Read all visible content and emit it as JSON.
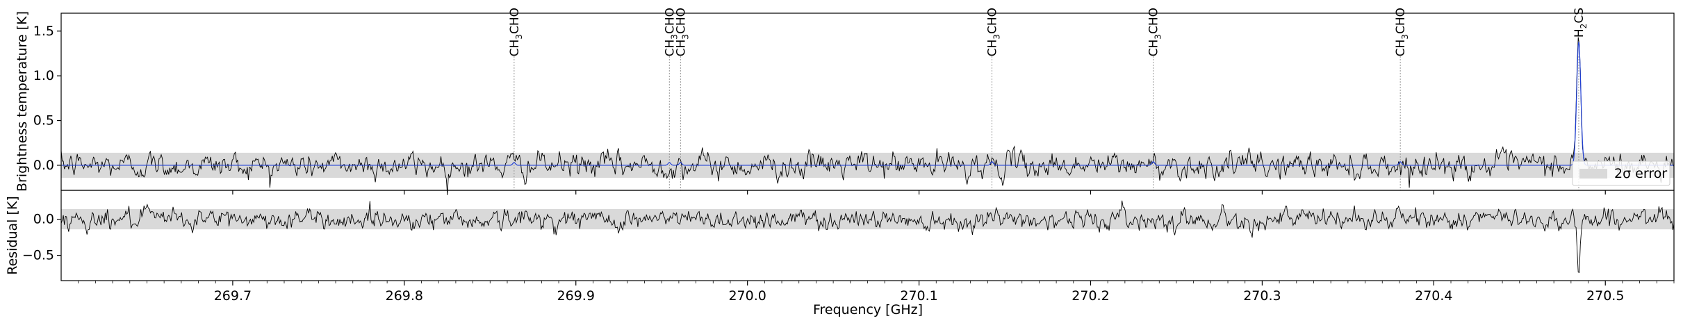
{
  "chart_data": {
    "type": "line",
    "xlabel": "Frequency [GHz]",
    "xlim": [
      269.6,
      270.54
    ],
    "xticks": [
      "269.7",
      "269.8",
      "269.9",
      "270.0",
      "270.1",
      "270.2",
      "270.3",
      "270.4",
      "270.5"
    ],
    "xtick_values": [
      269.7,
      269.8,
      269.9,
      270.0,
      270.1,
      270.2,
      270.3,
      270.4,
      270.5
    ],
    "colors": {
      "observed": "#000000",
      "model": "#1f3fd6",
      "error_band": "#d9d9d9",
      "marker": "#999999"
    },
    "panels": [
      {
        "name": "spectrum",
        "ylabel": "Brightness temperature [K]",
        "ylim": [
          -0.28,
          1.7
        ],
        "yticks": [
          "0.0",
          "0.5",
          "1.0",
          "1.5"
        ],
        "ytick_values": [
          0.0,
          0.5,
          1.0,
          1.5
        ],
        "error_band": [
          -0.14,
          0.14
        ],
        "legend": {
          "label": "2σ error",
          "location": "lower-right"
        },
        "series": [
          {
            "role": "observed",
            "style": "black thin noisy line",
            "noise_sigma": 0.07,
            "features": [
              {
                "x": 270.4845,
                "peak": 1.38,
                "width": 0.0012
              }
            ]
          },
          {
            "role": "model",
            "style": "blue line",
            "features": [
              {
                "x": 270.4845,
                "peak": 1.38,
                "width": 0.0012
              },
              {
                "x": 269.864,
                "peak": 0.03,
                "width": 0.0008
              },
              {
                "x": 269.9545,
                "peak": 0.03,
                "width": 0.0008
              },
              {
                "x": 269.961,
                "peak": 0.03,
                "width": 0.0008
              },
              {
                "x": 270.1425,
                "peak": 0.04,
                "width": 0.0008
              },
              {
                "x": 270.2365,
                "peak": 0.04,
                "width": 0.0008
              },
              {
                "x": 270.3805,
                "peak": 0.04,
                "width": 0.0008
              }
            ]
          }
        ],
        "line_markers": [
          {
            "x": 269.864,
            "label": "CH3CHO",
            "main": "CH",
            "sub": "3",
            "rest": "CHO"
          },
          {
            "x": 269.9545,
            "label": "CH3CHO",
            "main": "CH",
            "sub": "3",
            "rest": "CHO"
          },
          {
            "x": 269.961,
            "label": "CH3CHO",
            "main": "CH",
            "sub": "3",
            "rest": "CHO"
          },
          {
            "x": 270.1425,
            "label": "CH3CHO",
            "main": "CH",
            "sub": "3",
            "rest": "CHO"
          },
          {
            "x": 270.2365,
            "label": "CH3CHO",
            "main": "CH",
            "sub": "3",
            "rest": "CHO"
          },
          {
            "x": 270.3805,
            "label": "CH3CHO",
            "main": "CH",
            "sub": "3",
            "rest": "CHO"
          },
          {
            "x": 270.4845,
            "label": "H2CS",
            "main": "H",
            "sub": "2",
            "rest": "CS"
          }
        ]
      },
      {
        "name": "residual",
        "ylabel": "Residual [K]",
        "ylim": [
          -0.85,
          0.4
        ],
        "yticks": [
          "0.0",
          "−0.5"
        ],
        "ytick_values": [
          0.0,
          -0.5
        ],
        "error_band": [
          -0.14,
          0.14
        ],
        "series": [
          {
            "role": "residual",
            "style": "black thin noisy line",
            "noise_sigma": 0.07,
            "features": [
              {
                "x": 270.4845,
                "peak": -0.72,
                "width": 0.0008
              }
            ]
          }
        ]
      }
    ]
  }
}
